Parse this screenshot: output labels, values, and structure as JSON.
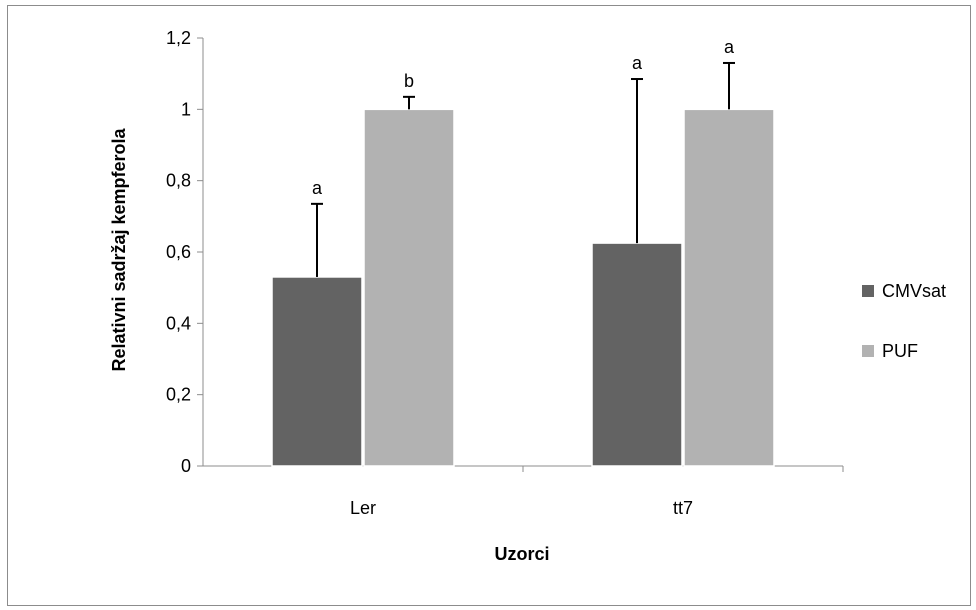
{
  "chart_data": {
    "type": "bar",
    "categories": [
      "Ler",
      "tt7"
    ],
    "series": [
      {
        "name": "CMVsat",
        "color": "#636363",
        "values": [
          0.53,
          0.625
        ],
        "error_upper": [
          0.735,
          1.085
        ],
        "significance": [
          "a",
          "a"
        ]
      },
      {
        "name": "PUF",
        "color": "#b2b2b2",
        "values": [
          1.0,
          1.0
        ],
        "error_upper": [
          1.035,
          1.13
        ],
        "significance": [
          "b",
          "a"
        ]
      }
    ],
    "xlabel": "Uzorci",
    "ylabel": "Relativni sadržaj kempferola",
    "ylim": [
      0,
      1.2
    ],
    "yticks": [
      "0",
      "0,2",
      "0,4",
      "0,6",
      "0,8",
      "1",
      "1,2"
    ],
    "grid": false,
    "legend_position": "right"
  }
}
